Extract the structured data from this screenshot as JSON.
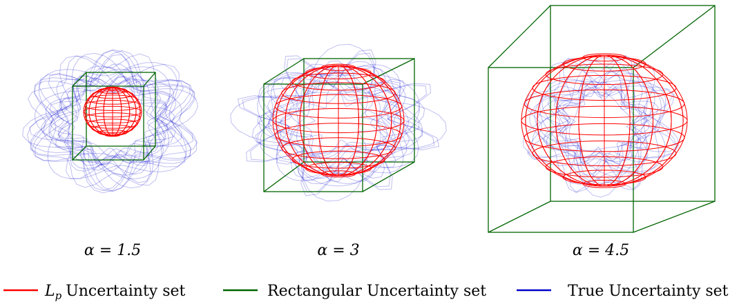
{
  "panels": [
    {
      "label": "α = 1.5"
    },
    {
      "label": "α = 3"
    },
    {
      "label": "α = 4.5"
    }
  ],
  "legend": [
    {
      "symbol": "L",
      "subscript": "p",
      "label": "Uncertainty set",
      "color": "#ff0000"
    },
    {
      "label": "Rectangular Uncertainty set",
      "color": "#006400"
    },
    {
      "label": "True Uncertainty set",
      "color": "#0000cd"
    }
  ]
}
